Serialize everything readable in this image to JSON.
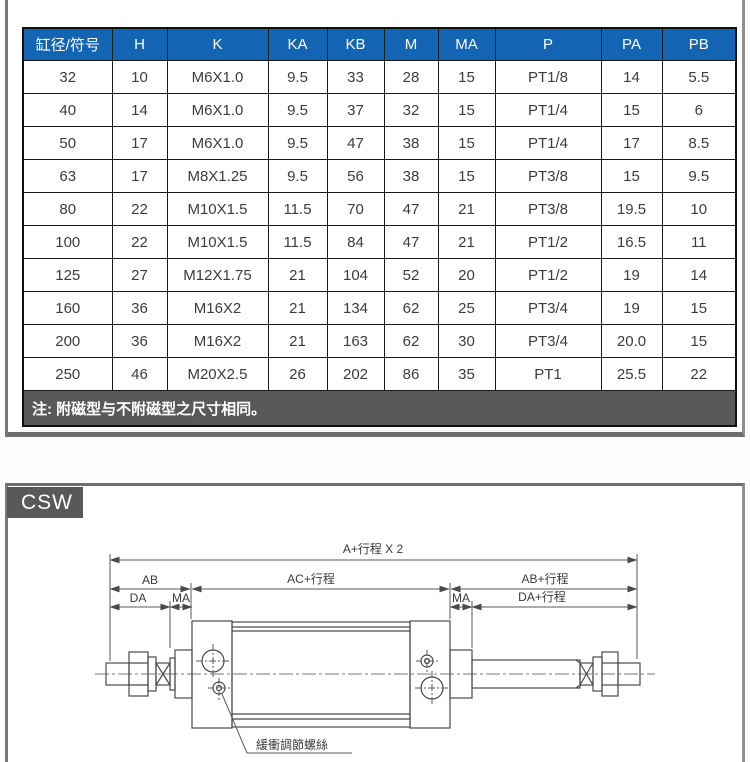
{
  "table": {
    "headers": [
      "缸径/符号",
      "H",
      "K",
      "KA",
      "KB",
      "M",
      "MA",
      "P",
      "PA",
      "PB"
    ],
    "rows": [
      [
        "32",
        "10",
        "M6X1.0",
        "9.5",
        "33",
        "28",
        "15",
        "PT1/8",
        "14",
        "5.5"
      ],
      [
        "40",
        "14",
        "M6X1.0",
        "9.5",
        "37",
        "32",
        "15",
        "PT1/4",
        "15",
        "6"
      ],
      [
        "50",
        "17",
        "M6X1.0",
        "9.5",
        "47",
        "38",
        "15",
        "PT1/4",
        "17",
        "8.5"
      ],
      [
        "63",
        "17",
        "M8X1.25",
        "9.5",
        "56",
        "38",
        "15",
        "PT3/8",
        "15",
        "9.5"
      ],
      [
        "80",
        "22",
        "M10X1.5",
        "11.5",
        "70",
        "47",
        "21",
        "PT3/8",
        "19.5",
        "10"
      ],
      [
        "100",
        "22",
        "M10X1.5",
        "11.5",
        "84",
        "47",
        "21",
        "PT1/2",
        "16.5",
        "11"
      ],
      [
        "125",
        "27",
        "M12X1.75",
        "21",
        "104",
        "52",
        "20",
        "PT1/2",
        "19",
        "14"
      ],
      [
        "160",
        "36",
        "M16X2",
        "21",
        "134",
        "62",
        "25",
        "PT3/4",
        "19",
        "15"
      ],
      [
        "200",
        "36",
        "M16X2",
        "21",
        "163",
        "62",
        "30",
        "PT3/4",
        "20.0",
        "15"
      ],
      [
        "250",
        "46",
        "M20X2.5",
        "26",
        "202",
        "86",
        "35",
        "PT1",
        "25.5",
        "22"
      ]
    ],
    "note": "注: 附磁型与不附磁型之尺寸相同。"
  },
  "section_label": "CSW",
  "diagram": {
    "labels": {
      "total_length": "A+行程 X 2",
      "ab": "AB",
      "ac_stroke": "AC+行程",
      "ab_stroke": "AB+行程",
      "da": "DA",
      "ma_left": "MA",
      "ma_right": "MA",
      "da_stroke": "DA+行程",
      "cushion_screw": "緩衝調節螺絲"
    }
  },
  "colors": {
    "header_bg": "#1464b4",
    "note_bg": "#595959",
    "frame_gray": "#6e6e6e",
    "line_gray": "#4a4a4a"
  }
}
